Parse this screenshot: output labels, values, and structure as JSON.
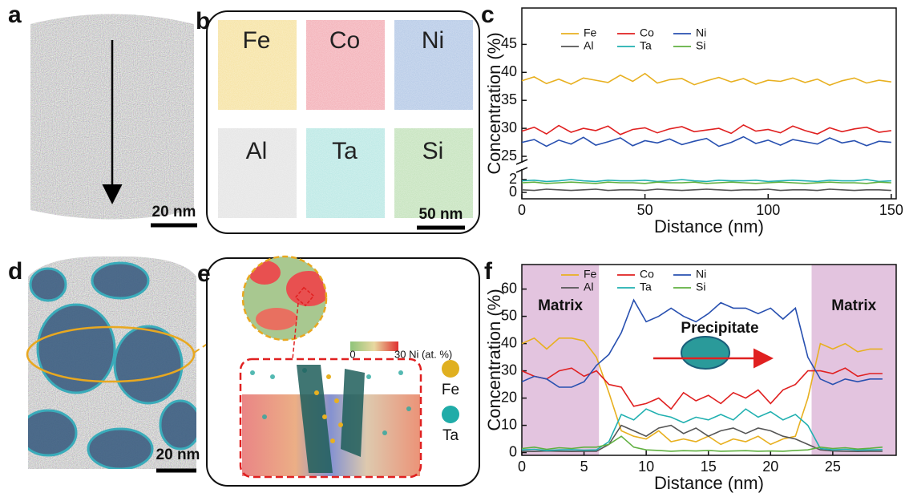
{
  "figure": {
    "panel_labels": [
      "a",
      "b",
      "c",
      "d",
      "e",
      "f"
    ],
    "scale_bars": [
      "20 nm",
      "50 nm",
      "20 nm"
    ],
    "elements": [
      "Fe",
      "Co",
      "Ni",
      "Al",
      "Ta",
      "Si"
    ],
    "colorbar": {
      "min": 0,
      "max": "30 Ni (at. %)"
    },
    "legend": [
      "Fe",
      "Ta"
    ]
  },
  "chart_data": [
    {
      "type": "line",
      "xlabel": "Distance (nm)",
      "ylabel": "Concentration (%)",
      "x": [
        0,
        5,
        10,
        15,
        20,
        25,
        30,
        35,
        40,
        45,
        50,
        55,
        60,
        65,
        70,
        75,
        80,
        85,
        90,
        95,
        100,
        105,
        110,
        115,
        120,
        125,
        130,
        135,
        140,
        145,
        150
      ],
      "xlim": [
        0,
        152
      ],
      "ylim": [
        -1,
        51.5
      ],
      "ybreak": [
        3.5,
        24
      ],
      "xticks": [
        0,
        50,
        100,
        150
      ],
      "yticks": [
        0,
        2,
        25,
        30,
        35,
        40,
        45
      ],
      "series": [
        {
          "name": "Fe",
          "color": "#e8b020",
          "values": [
            38.5,
            39.2,
            38.0,
            38.8,
            37.9,
            39.0,
            38.6,
            38.2,
            39.5,
            38.4,
            39.8,
            38.1,
            38.7,
            38.9,
            37.8,
            38.5,
            39.1,
            38.3,
            38.9,
            37.9,
            38.6,
            38.4,
            39.0,
            38.2,
            38.8,
            37.7,
            38.5,
            39.0,
            38.1,
            38.6,
            38.3
          ]
        },
        {
          "name": "Co",
          "color": "#e02020",
          "values": [
            29.5,
            30.2,
            29.0,
            30.5,
            29.3,
            30.0,
            29.6,
            30.4,
            28.9,
            29.8,
            30.1,
            29.2,
            29.9,
            30.3,
            29.4,
            29.7,
            30.0,
            29.1,
            30.6,
            29.5,
            29.8,
            29.2,
            30.4,
            29.6,
            29.0,
            30.1,
            29.4,
            29.9,
            30.2,
            29.3,
            29.6
          ]
        },
        {
          "name": "Ni",
          "color": "#2850b0",
          "values": [
            27.5,
            28.0,
            26.8,
            27.9,
            27.2,
            28.4,
            27.0,
            27.6,
            28.3,
            26.9,
            27.8,
            27.4,
            28.1,
            27.1,
            27.7,
            28.2,
            26.8,
            27.5,
            28.5,
            27.3,
            27.9,
            27.0,
            28.0,
            27.6,
            27.2,
            28.3,
            27.4,
            27.8,
            26.9,
            27.7,
            27.5
          ]
        },
        {
          "name": "Al",
          "color": "#555555",
          "values": [
            0.4,
            0.3,
            0.5,
            0.4,
            0.3,
            0.4,
            0.5,
            0.3,
            0.4,
            0.4,
            0.3,
            0.5,
            0.4,
            0.3,
            0.4,
            0.5,
            0.4,
            0.3,
            0.4,
            0.4,
            0.5,
            0.3,
            0.4,
            0.4,
            0.3,
            0.5,
            0.4,
            0.3,
            0.4,
            0.4,
            0.3
          ]
        },
        {
          "name": "Ta",
          "color": "#20b0b0",
          "values": [
            1.8,
            1.9,
            1.7,
            1.8,
            2.0,
            1.8,
            1.7,
            1.9,
            1.8,
            1.8,
            1.9,
            1.7,
            1.8,
            2.0,
            1.8,
            1.7,
            1.9,
            1.8,
            1.8,
            1.9,
            1.7,
            1.8,
            1.9,
            1.8,
            1.7,
            1.9,
            1.8,
            1.8,
            2.0,
            1.7,
            1.8
          ]
        },
        {
          "name": "Si",
          "color": "#60b040",
          "values": [
            1.5,
            1.6,
            1.4,
            1.5,
            1.6,
            1.5,
            1.4,
            1.6,
            1.5,
            1.5,
            1.4,
            1.6,
            1.5,
            1.5,
            1.6,
            1.4,
            1.5,
            1.6,
            1.5,
            1.4,
            1.5,
            1.6,
            1.5,
            1.4,
            1.5,
            1.6,
            1.5,
            1.5,
            1.4,
            1.6,
            1.5
          ]
        }
      ]
    },
    {
      "type": "line",
      "xlabel": "Distance (nm)",
      "ylabel": "Concentration (%)",
      "annotation": "Precipitate",
      "x": [
        0,
        1,
        2,
        3,
        4,
        5,
        6,
        7,
        8,
        9,
        10,
        11,
        12,
        13,
        14,
        15,
        16,
        17,
        18,
        19,
        20,
        21,
        22,
        23,
        24,
        25,
        26,
        27,
        28,
        29
      ],
      "xlim": [
        0,
        30.1
      ],
      "ylim": [
        -1,
        69
      ],
      "xticks": [
        0,
        5,
        10,
        15,
        20,
        25
      ],
      "yticks": [
        0,
        10,
        20,
        30,
        40,
        50,
        60
      ],
      "regions": [
        {
          "from": 0,
          "to": 6.2,
          "label": "Matrix"
        },
        {
          "from": 23.3,
          "to": 30.1,
          "label": "Matrix"
        }
      ],
      "series": [
        {
          "name": "Fe",
          "color": "#e8b020",
          "values": [
            40,
            42,
            38,
            42,
            42,
            41,
            35,
            22,
            8,
            6,
            5,
            8,
            4,
            5,
            4,
            6,
            3,
            5,
            4,
            6,
            3,
            5,
            6,
            20,
            40,
            38,
            40,
            37,
            38,
            38
          ]
        },
        {
          "name": "Co",
          "color": "#e02020",
          "values": [
            30,
            28,
            27,
            30,
            31,
            28,
            30,
            25,
            24,
            17,
            18,
            20,
            16,
            22,
            19,
            21,
            18,
            22,
            20,
            23,
            18,
            23,
            25,
            30,
            30,
            29,
            31,
            28,
            29,
            29
          ]
        },
        {
          "name": "Ni",
          "color": "#2850b0",
          "values": [
            26,
            28,
            27,
            24,
            24,
            26,
            32,
            36,
            44,
            56,
            48,
            50,
            53,
            50,
            48,
            51,
            55,
            53,
            53,
            51,
            53,
            49,
            53,
            35,
            27,
            25,
            27,
            26,
            27,
            27
          ]
        },
        {
          "name": "Al",
          "color": "#555555",
          "values": [
            0.5,
            0.4,
            0.6,
            0.5,
            0.4,
            0.5,
            0.5,
            3,
            10,
            8,
            6,
            9,
            10,
            7,
            9,
            6,
            8,
            9,
            7,
            9,
            8,
            6,
            5,
            3,
            1,
            0.6,
            0.5,
            0.4,
            0.5,
            0.5
          ]
        },
        {
          "name": "Ta",
          "color": "#20b0b0",
          "values": [
            1,
            1.2,
            0.8,
            1,
            1.1,
            0.9,
            1,
            4,
            14,
            12,
            16,
            14,
            13,
            11,
            13,
            12,
            14,
            12,
            16,
            13,
            15,
            12,
            14,
            10,
            1.5,
            1,
            1.2,
            0.9,
            1,
            1.1
          ]
        },
        {
          "name": "Si",
          "color": "#60b040",
          "values": [
            1.5,
            2,
            1.2,
            1.8,
            1.5,
            2,
            2,
            3,
            6,
            2,
            1,
            0.8,
            0.5,
            0.7,
            0.6,
            0.8,
            0.5,
            0.6,
            0.7,
            0.5,
            0.6,
            0.5,
            0.8,
            1,
            2,
            1.5,
            1.8,
            1.3,
            1.6,
            2
          ]
        }
      ]
    }
  ]
}
